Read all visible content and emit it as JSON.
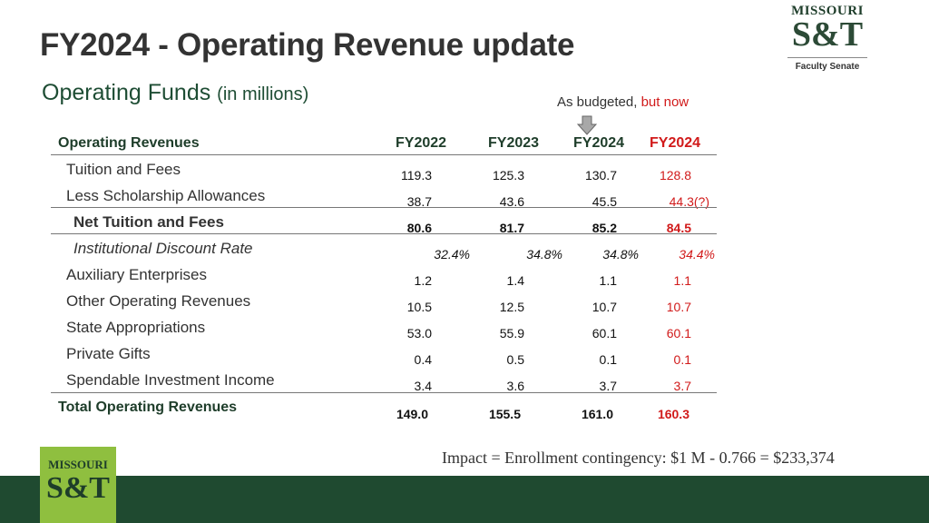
{
  "title": "FY2024 - Operating Revenue update",
  "subtitle": {
    "main": "Operating Funds",
    "unit": "(in millions)"
  },
  "logo_top": {
    "wordmark": "MISSOURI",
    "monogram": "S&T",
    "caption": "Faculty Senate"
  },
  "note": {
    "budgeted": "As budgeted,",
    "now": "but now"
  },
  "table": {
    "headers": [
      "Operating Revenues",
      "FY2022",
      "FY2023",
      "FY2024",
      "FY2024"
    ],
    "rows": [
      {
        "label": "Tuition and Fees",
        "values": [
          "119.3",
          "125.3",
          "130.7",
          "128.8"
        ]
      },
      {
        "label": "Less Scholarship Allowances",
        "values": [
          "38.7",
          "43.6",
          "45.5",
          "44.3(?)"
        ]
      },
      {
        "label": "Net Tuition and Fees",
        "values": [
          "80.6",
          "81.7",
          "85.2",
          "84.5"
        ]
      },
      {
        "label": "Institutional Discount Rate",
        "values": [
          "32.4%",
          "34.8%",
          "34.8%",
          "34.4%"
        ]
      },
      {
        "label": "Auxiliary Enterprises",
        "values": [
          "1.2",
          "1.4",
          "1.1",
          "1.1"
        ]
      },
      {
        "label": "Other Operating Revenues",
        "values": [
          "10.5",
          "12.5",
          "10.7",
          "10.7"
        ]
      },
      {
        "label": "State Appropriations",
        "values": [
          "53.0",
          "55.9",
          "60.1",
          "60.1"
        ]
      },
      {
        "label": "Private Gifts",
        "values": [
          "0.4",
          "0.5",
          "0.1",
          "0.1"
        ]
      },
      {
        "label": "Spendable Investment Income",
        "values": [
          "3.4",
          "3.6",
          "3.7",
          "3.7"
        ]
      },
      {
        "label": "Total Operating Revenues",
        "values": [
          "149.0",
          "155.5",
          "161.0",
          "160.3"
        ]
      }
    ]
  },
  "impact": "Impact = Enrollment contingency: $1 M - 0.766 = $233,374",
  "logo_bottom": {
    "wordmark": "MISSOURI",
    "monogram": "S&T"
  },
  "colors": {
    "accent_red": "#d11a1a",
    "brand_green": "#1f4a30",
    "logo_lime": "#8fbf3f"
  }
}
